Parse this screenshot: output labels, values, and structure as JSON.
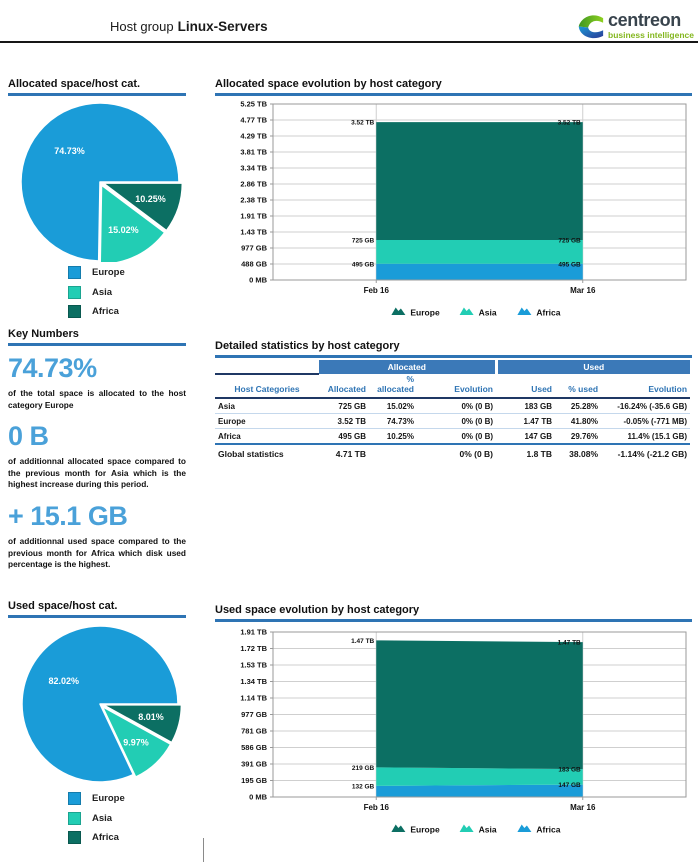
{
  "page": {
    "title_prefix": "Host group",
    "title_name": "Linux-Servers"
  },
  "logo": {
    "text": "centreon",
    "subtext": "business intelligence"
  },
  "colors": {
    "accent_underline": "#2e74b4",
    "key_number_blue": "#4aa1d9",
    "table_group_header_bg": "#3b79b8",
    "table_header_text": "#2e74b4",
    "table_dark_border": "#1f3864",
    "europe_pie_blue": "#1a9cd8",
    "asia_teal": "#22cdb4",
    "africa_dark_teal": "#0c6f63",
    "logo_green": "#84b71f",
    "logo_dark": "#39444d"
  },
  "key_numbers": {
    "title": "Key Numbers",
    "items": [
      {
        "value": "74.73%",
        "pre": "of the total space is allocated to the host category  ",
        "bold": "Europe",
        "post": ""
      },
      {
        "value": "0 B",
        "pre": "of additionnal allocated space compared to the previous month for ",
        "bold": "Asia",
        "post": " which is the highest increase during this period."
      },
      {
        "value": "+ 15.1 GB",
        "pre": "of additionnal used space compared to the previous month for  ",
        "bold": "Africa",
        "post": " which disk used percentage is the highest."
      }
    ]
  },
  "chart_data": [
    {
      "id": "pie_allocated",
      "type": "pie",
      "title": "Allocated space/host cat.",
      "labels": [
        "Europe",
        "Asia",
        "Africa"
      ],
      "values": [
        74.73,
        15.02,
        10.25
      ],
      "value_labels": [
        "74.73%",
        "15.02%",
        "10.25%"
      ],
      "colors": [
        "#1a9cd8",
        "#22cdb4",
        "#0c6f63"
      ],
      "legend_position": "bottom"
    },
    {
      "id": "area_allocated",
      "type": "area",
      "stacked": true,
      "title": "Allocated space evolution by host category",
      "x": [
        "Feb 16",
        "Mar 16"
      ],
      "series": [
        {
          "name": "Europe",
          "color": "#0c6f63",
          "values_gb": [
            3604,
            3604
          ],
          "point_labels": [
            "3.52 TB",
            "3.52 TB"
          ]
        },
        {
          "name": "Asia",
          "color": "#22cdb4",
          "values_gb": [
            725,
            725
          ],
          "point_labels": [
            "725 GB",
            "725 GB"
          ]
        },
        {
          "name": "Africa",
          "color": "#1a9cd8",
          "values_gb": [
            495,
            495
          ],
          "point_labels": [
            "495 GB",
            "495 GB"
          ]
        }
      ],
      "ymax_gb": 5376,
      "yticks": [
        "0 MB",
        "488 GB",
        "977 GB",
        "1.43 TB",
        "1.91 TB",
        "2.38 TB",
        "2.86 TB",
        "3.34 TB",
        "3.81 TB",
        "4.29 TB",
        "4.77 TB",
        "5.25 TB"
      ],
      "grid": true,
      "legend_position": "bottom"
    },
    {
      "id": "stats_table",
      "type": "table",
      "title": "Detailed statistics by host category",
      "group_headers": [
        "Allocated",
        "Used"
      ],
      "columns": [
        "Host Categories",
        "Allocated",
        "% allocated",
        "Evolution",
        "Used",
        "% used",
        "Evolution"
      ],
      "rows": [
        [
          "Asia",
          "725 GB",
          "15.02%",
          "0% (0 B)",
          "183 GB",
          "25.28%",
          "-16.24% (-35.6 GB)"
        ],
        [
          "Europe",
          "3.52 TB",
          "74.73%",
          "0% (0 B)",
          "1.47 TB",
          "41.80%",
          "-0.05% (-771 MB)"
        ],
        [
          "Africa",
          "495 GB",
          "10.25%",
          "0% (0 B)",
          "147 GB",
          "29.76%",
          "11.4% (15.1 GB)"
        ]
      ],
      "footer": [
        "Global statistics",
        "4.71 TB",
        "",
        "0% (0 B)",
        "1.8 TB",
        "38.08%",
        "-1.14% (-21.2 GB)"
      ]
    },
    {
      "id": "pie_used",
      "type": "pie",
      "title": "Used space/host cat.",
      "labels": [
        "Europe",
        "Asia",
        "Africa"
      ],
      "values": [
        82.02,
        9.97,
        8.01
      ],
      "value_labels": [
        "82.02%",
        "9.97%",
        "8.01%"
      ],
      "colors": [
        "#1a9cd8",
        "#22cdb4",
        "#0c6f63"
      ],
      "legend_position": "bottom"
    },
    {
      "id": "area_used",
      "type": "area",
      "stacked": true,
      "title": "Used space evolution by host category",
      "x": [
        "Feb 16",
        "Mar 16"
      ],
      "series": [
        {
          "name": "Europe",
          "color": "#0c6f63",
          "values_gb": [
            1505,
            1505
          ],
          "point_labels": [
            "1.47 TB",
            "1.47 TB"
          ]
        },
        {
          "name": "Asia",
          "color": "#22cdb4",
          "values_gb": [
            219,
            183
          ],
          "point_labels": [
            "219 GB",
            "183 GB"
          ]
        },
        {
          "name": "Africa",
          "color": "#1a9cd8",
          "values_gb": [
            132,
            147
          ],
          "point_labels": [
            "132 GB",
            "147 GB"
          ]
        }
      ],
      "ymax_gb": 1955,
      "yticks": [
        "0 MB",
        "195 GB",
        "391 GB",
        "586 GB",
        "781 GB",
        "977 GB",
        "1.14 TB",
        "1.34 TB",
        "1.53 TB",
        "1.72 TB",
        "1.91 TB"
      ],
      "grid": true,
      "legend_position": "bottom"
    }
  ]
}
